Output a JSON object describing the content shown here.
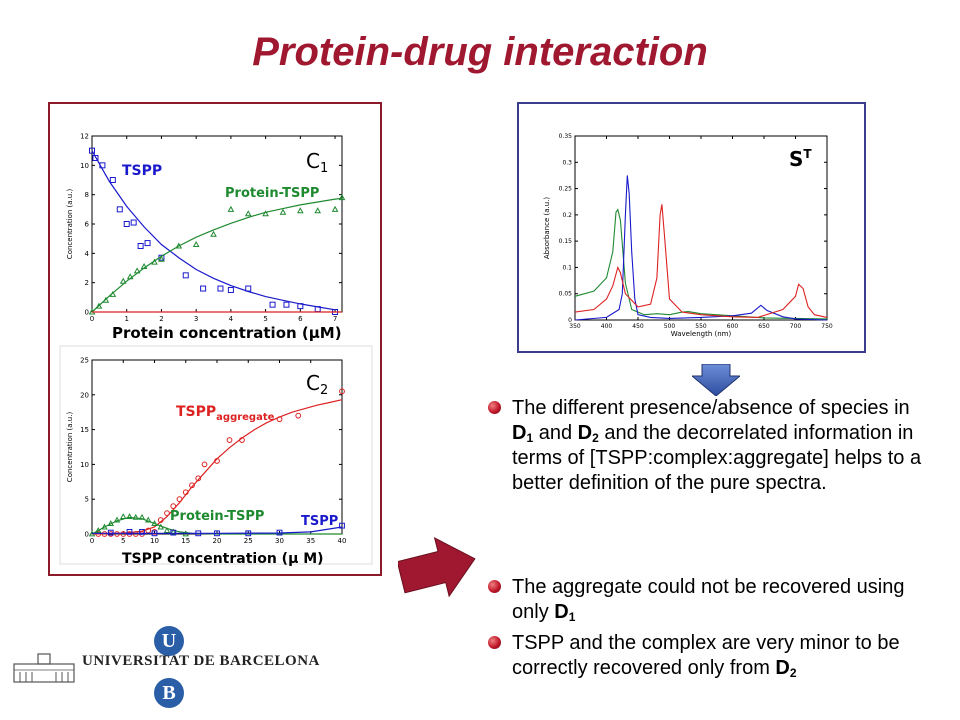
{
  "slide": {
    "title": "Protein-drug interaction"
  },
  "chart_data": [
    {
      "type": "scatter",
      "panel_label": "C",
      "panel_sub": "1",
      "xlabel": "Protein concentration (",
      "xlabel_unit": "μM)",
      "ylabel": "Concentration (a.u.)",
      "xlim": [
        0,
        7.2
      ],
      "ylim": [
        0,
        12
      ],
      "x_ticks": [
        0,
        1,
        2,
        3,
        4,
        5,
        6,
        7
      ],
      "y_ticks": [
        0,
        2,
        4,
        6,
        8,
        10,
        12
      ],
      "annotations": {
        "tspp": "TSPP",
        "complex": "Protein-TSPP"
      },
      "colors": {
        "tspp": "#1a1acc",
        "complex": "#1e8a30",
        "baseline": "#dd2222",
        "axis": "#000000"
      },
      "series": [
        {
          "name": "TSPP",
          "marker": "square",
          "color": "#1a1acc",
          "points": [
            [
              0.0,
              11.0
            ],
            [
              0.1,
              10.5
            ],
            [
              0.3,
              10.0
            ],
            [
              0.6,
              9.0
            ],
            [
              0.8,
              7.0
            ],
            [
              1.0,
              6.0
            ],
            [
              1.2,
              6.1
            ],
            [
              1.4,
              4.5
            ],
            [
              1.6,
              4.7
            ],
            [
              2.0,
              3.7
            ],
            [
              2.7,
              2.5
            ],
            [
              3.2,
              1.6
            ],
            [
              3.7,
              1.6
            ],
            [
              4.0,
              1.5
            ],
            [
              4.5,
              1.6
            ],
            [
              5.2,
              0.5
            ],
            [
              5.6,
              0.5
            ],
            [
              6.0,
              0.4
            ],
            [
              6.5,
              0.2
            ],
            [
              7.0,
              0.0
            ]
          ],
          "fit": [
            [
              0,
              11.0
            ],
            [
              0.5,
              8.9
            ],
            [
              1,
              7.2
            ],
            [
              1.5,
              5.8
            ],
            [
              2,
              4.6
            ],
            [
              2.5,
              3.7
            ],
            [
              3,
              2.9
            ],
            [
              3.5,
              2.3
            ],
            [
              4,
              1.8
            ],
            [
              4.5,
              1.4
            ],
            [
              5,
              1.05
            ],
            [
              5.5,
              0.8
            ],
            [
              6,
              0.55
            ],
            [
              6.5,
              0.35
            ],
            [
              7,
              0.15
            ]
          ]
        },
        {
          "name": "Protein-TSPP",
          "marker": "triangle",
          "color": "#1e8a30",
          "points": [
            [
              0.0,
              0.0
            ],
            [
              0.2,
              0.4
            ],
            [
              0.4,
              0.8
            ],
            [
              0.6,
              1.2
            ],
            [
              0.9,
              2.1
            ],
            [
              1.1,
              2.4
            ],
            [
              1.3,
              2.8
            ],
            [
              1.5,
              3.1
            ],
            [
              1.8,
              3.4
            ],
            [
              2.0,
              3.6
            ],
            [
              2.5,
              4.5
            ],
            [
              3.0,
              4.6
            ],
            [
              3.5,
              5.3
            ],
            [
              4.0,
              7.0
            ],
            [
              4.5,
              6.7
            ],
            [
              5.0,
              6.7
            ],
            [
              5.5,
              6.8
            ],
            [
              6.0,
              6.9
            ],
            [
              6.5,
              6.9
            ],
            [
              7.0,
              7.0
            ],
            [
              7.2,
              7.8
            ]
          ],
          "fit": [
            [
              0,
              0
            ],
            [
              0.5,
              1.1
            ],
            [
              1,
              2.1
            ],
            [
              1.5,
              3.0
            ],
            [
              2,
              3.8
            ],
            [
              2.5,
              4.5
            ],
            [
              3,
              5.1
            ],
            [
              3.5,
              5.6
            ],
            [
              4,
              6.05
            ],
            [
              4.5,
              6.45
            ],
            [
              5,
              6.8
            ],
            [
              5.5,
              7.05
            ],
            [
              6,
              7.3
            ],
            [
              6.5,
              7.5
            ],
            [
              7,
              7.7
            ],
            [
              7.2,
              7.75
            ]
          ]
        },
        {
          "name": "",
          "marker": "none",
          "color": "#dd2222",
          "fit": [
            [
              0,
              0
            ],
            [
              7.2,
              0
            ]
          ]
        }
      ]
    },
    {
      "type": "scatter",
      "panel_label": "C",
      "panel_sub": "2",
      "xlabel": "TSPP concentration (",
      "xlabel_unit": "μ M)",
      "ylabel": "Concentration (a.u.)",
      "xlim": [
        0,
        40
      ],
      "ylim": [
        0,
        25
      ],
      "x_ticks": [
        0,
        5,
        10,
        15,
        20,
        25,
        30,
        35,
        40
      ],
      "y_ticks": [
        0,
        5,
        10,
        15,
        20,
        25
      ],
      "annotations": {
        "aggregate": "TSPP",
        "aggregate_sub": "aggregate",
        "complex": "Protein-TSPP",
        "tspp": "TSPP"
      },
      "colors": {
        "aggregate": "#dd2222",
        "complex": "#1e8a30",
        "tspp": "#1a1acc"
      },
      "series": [
        {
          "name": "TSPP aggregate",
          "marker": "circle",
          "color": "#dd2222",
          "points": [
            [
              1,
              0
            ],
            [
              2,
              0
            ],
            [
              3,
              0
            ],
            [
              4,
              0
            ],
            [
              5,
              0
            ],
            [
              6,
              0
            ],
            [
              7,
              0
            ],
            [
              8,
              0
            ],
            [
              9,
              0.5
            ],
            [
              10,
              0.3
            ],
            [
              11,
              2.0
            ],
            [
              12,
              3.0
            ],
            [
              13,
              4.0
            ],
            [
              14,
              5.0
            ],
            [
              15,
              6.0
            ],
            [
              16,
              7.0
            ],
            [
              17,
              8.0
            ],
            [
              18,
              10.0
            ],
            [
              20,
              10.5
            ],
            [
              22,
              13.5
            ],
            [
              24,
              13.5
            ],
            [
              30,
              16.5
            ],
            [
              33,
              17.0
            ],
            [
              40,
              20.5
            ]
          ],
          "fit": [
            [
              0,
              0
            ],
            [
              5,
              0.1
            ],
            [
              8,
              0.4
            ],
            [
              10,
              1.0
            ],
            [
              12,
              2.5
            ],
            [
              14,
              4.5
            ],
            [
              16,
              6.8
            ],
            [
              18,
              8.8
            ],
            [
              20,
              10.8
            ],
            [
              22,
              12.4
            ],
            [
              24,
              13.8
            ],
            [
              26,
              15.0
            ],
            [
              28,
              16.0
            ],
            [
              30,
              16.8
            ],
            [
              32,
              17.5
            ],
            [
              34,
              18.0
            ],
            [
              36,
              18.5
            ],
            [
              38,
              18.9
            ],
            [
              40,
              19.3
            ]
          ]
        },
        {
          "name": "Protein-TSPP",
          "marker": "triangle",
          "color": "#1e8a30",
          "points": [
            [
              0,
              0
            ],
            [
              1,
              0.5
            ],
            [
              2,
              1.0
            ],
            [
              3,
              1.5
            ],
            [
              4,
              2.0
            ],
            [
              5,
              2.5
            ],
            [
              6,
              2.5
            ],
            [
              7,
              2.4
            ],
            [
              8,
              2.4
            ],
            [
              9,
              2.0
            ],
            [
              10,
              1.5
            ],
            [
              11,
              1.0
            ],
            [
              12,
              0.5
            ],
            [
              13,
              0.3
            ],
            [
              15,
              0.0
            ]
          ],
          "fit": [
            [
              0,
              0
            ],
            [
              2,
              1.0
            ],
            [
              4,
              1.9
            ],
            [
              6,
              2.4
            ],
            [
              8,
              2.2
            ],
            [
              10,
              1.5
            ],
            [
              12,
              0.8
            ],
            [
              14,
              0.3
            ],
            [
              16,
              0.1
            ],
            [
              20,
              0
            ],
            [
              40,
              0
            ]
          ]
        },
        {
          "name": "TSPP",
          "marker": "square",
          "color": "#1a1acc",
          "points": [
            [
              3,
              0.2
            ],
            [
              6,
              0.3
            ],
            [
              8,
              0.3
            ],
            [
              10,
              0.1
            ],
            [
              13,
              0.2
            ],
            [
              17,
              0.1
            ],
            [
              20,
              0.1
            ],
            [
              25,
              0.1
            ],
            [
              30,
              0.2
            ],
            [
              40,
              1.2
            ]
          ],
          "fit": [
            [
              0,
              0.1
            ],
            [
              10,
              0.1
            ],
            [
              20,
              0.1
            ],
            [
              30,
              0.15
            ],
            [
              35,
              0.3
            ],
            [
              40,
              1.0
            ]
          ]
        }
      ]
    },
    {
      "type": "line",
      "panel_label": "S",
      "panel_sup": "T",
      "xlabel": "Wavelength (nm)",
      "ylabel": "Absorbance (a.u.)",
      "xlim": [
        350,
        750
      ],
      "ylim": [
        0,
        0.35
      ],
      "x_ticks": [
        350,
        400,
        450,
        500,
        550,
        600,
        650,
        700,
        750
      ],
      "y_ticks": [
        0,
        0.05,
        0.1,
        0.15,
        0.2,
        0.25,
        0.3,
        0.35
      ],
      "series": [
        {
          "name": "",
          "color": "#1e8a30",
          "points": [
            [
              350,
              0.045
            ],
            [
              380,
              0.055
            ],
            [
              400,
              0.08
            ],
            [
              410,
              0.13
            ],
            [
              415,
              0.205
            ],
            [
              418,
              0.21
            ],
            [
              422,
              0.19
            ],
            [
              430,
              0.07
            ],
            [
              440,
              0.02
            ],
            [
              460,
              0.01
            ],
            [
              480,
              0.012
            ],
            [
              500,
              0.01
            ],
            [
              520,
              0.015
            ],
            [
              530,
              0.016
            ],
            [
              550,
              0.012
            ],
            [
              600,
              0.008
            ],
            [
              650,
              0.004
            ],
            [
              700,
              0.003
            ],
            [
              750,
              0.002
            ]
          ]
        },
        {
          "name": "",
          "color": "#1a1acc",
          "points": [
            [
              350,
              0.0
            ],
            [
              400,
              0.005
            ],
            [
              420,
              0.02
            ],
            [
              425,
              0.05
            ],
            [
              430,
              0.2
            ],
            [
              433,
              0.275
            ],
            [
              436,
              0.24
            ],
            [
              440,
              0.13
            ],
            [
              445,
              0.04
            ],
            [
              450,
              0.01
            ],
            [
              470,
              0.005
            ],
            [
              500,
              0.003
            ],
            [
              550,
              0.005
            ],
            [
              600,
              0.008
            ],
            [
              630,
              0.013
            ],
            [
              645,
              0.028
            ],
            [
              655,
              0.018
            ],
            [
              680,
              0.006
            ],
            [
              700,
              0.002
            ],
            [
              750,
              0.0
            ]
          ]
        },
        {
          "name": "",
          "color": "#dd2222",
          "points": [
            [
              350,
              0.015
            ],
            [
              380,
              0.02
            ],
            [
              400,
              0.04
            ],
            [
              410,
              0.065
            ],
            [
              418,
              0.1
            ],
            [
              422,
              0.09
            ],
            [
              430,
              0.05
            ],
            [
              450,
              0.025
            ],
            [
              470,
              0.03
            ],
            [
              480,
              0.08
            ],
            [
              485,
              0.2
            ],
            [
              488,
              0.22
            ],
            [
              492,
              0.16
            ],
            [
              500,
              0.04
            ],
            [
              520,
              0.015
            ],
            [
              550,
              0.01
            ],
            [
              600,
              0.006
            ],
            [
              640,
              0.005
            ],
            [
              680,
              0.02
            ],
            [
              700,
              0.045
            ],
            [
              705,
              0.068
            ],
            [
              712,
              0.06
            ],
            [
              720,
              0.025
            ],
            [
              730,
              0.01
            ],
            [
              750,
              0.005
            ]
          ]
        }
      ]
    }
  ],
  "bullets_top": [
    {
      "parts": [
        {
          "t": "The different presence/absence of species in "
        },
        {
          "t": "D",
          "b": true
        },
        {
          "t": "1",
          "b": true,
          "sub": true
        },
        {
          "t": " and "
        },
        {
          "t": "D",
          "b": true
        },
        {
          "t": "2",
          "b": true,
          "sub": true
        },
        {
          "t": " and the decorrelated information in terms of [TSPP:complex:aggregate] helps to a better definition of the pure spectra."
        }
      ]
    }
  ],
  "bullets_bottom": [
    {
      "parts": [
        {
          "t": "The aggregate could not be recovered using only "
        },
        {
          "t": "D",
          "b": true
        },
        {
          "t": "1",
          "b": true,
          "sub": true
        }
      ]
    },
    {
      "parts": [
        {
          "t": "TSPP and the complex are very minor to be correctly recovered only from "
        },
        {
          "t": "D",
          "b": true
        },
        {
          "t": "2",
          "b": true,
          "sub": true
        }
      ]
    }
  ],
  "logo": {
    "text": "UNIVERSITAT DE BARCELONA",
    "top_letter": "U",
    "bottom_letter": "B",
    "color": "#2a5fa8"
  },
  "colors": {
    "title": "#a01830",
    "left_border": "#8b1a2b",
    "right_border": "#3a3d8a",
    "arrow_down": "#3a5cb0",
    "arrow_red": "#a01830"
  }
}
